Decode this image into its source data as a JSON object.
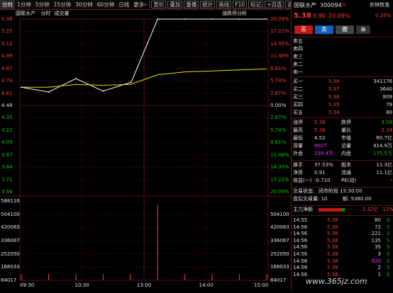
{
  "toolbar": {
    "items": [
      "分时",
      "1分钟",
      "5分钟",
      "15分钟",
      "30分钟",
      "60分钟",
      "日线",
      "更多"
    ],
    "more_arrow": "›",
    "tools": [
      "竞价",
      "叠加",
      "重播",
      "统计",
      "画线",
      "F10",
      "标记"
    ],
    "plus_watch": "+自选",
    "back": "返回"
  },
  "chart": {
    "legend": {
      "name": "国联水产",
      "tab1": "分时",
      "tab2": "成交量"
    },
    "limit_analysis": "涨跌停分析",
    "price_labels": [
      "5.38",
      "5.25",
      "5.12",
      "4.99",
      "4.87",
      "4.74",
      "4.61",
      "4.48",
      "4.35",
      "4.22",
      "4.09",
      "3.97",
      "3.84",
      "3.71",
      "3.58"
    ],
    "pct_labels": [
      "20.09%",
      "17.22%",
      "14.35%",
      "11.48%",
      "8.61%",
      "5.74%",
      "2.87%",
      "0.00%",
      "2.87%",
      "5.74%",
      "8.61%",
      "11.48%",
      "14.35%",
      "17.22%",
      "20.09%"
    ],
    "vol_labels": [
      "588116",
      "504100",
      "420083",
      "336067",
      "252050",
      "168033",
      "84017"
    ],
    "time_labels": [
      "09:30",
      "10:30",
      "13:00",
      "14:00",
      "15:00"
    ],
    "colors": {
      "up": "#ff3b3b",
      "down": "#00c800",
      "price_line": "#ffffff",
      "avg_line": "#e8e000",
      "grid": "#5a1010",
      "volume": "#ff3b3b"
    }
  },
  "chart_data": {
    "type": "line",
    "ylim": [
      3.58,
      5.38
    ],
    "prev_close": 4.48,
    "x": [
      "09:30",
      "10:00",
      "10:30",
      "11:00",
      "11:30",
      "13:00",
      "13:30",
      "14:00",
      "14:30",
      "15:00"
    ],
    "series": [
      {
        "values": [
          4.67,
          4.62,
          4.76,
          4.63,
          4.72,
          5.38,
          5.38,
          5.38,
          5.38,
          5.38
        ]
      },
      {
        "values": [
          4.67,
          4.67,
          4.7,
          4.69,
          4.7,
          4.8,
          4.83,
          4.84,
          4.85,
          4.86
        ]
      }
    ],
    "volume_max": 588116
  },
  "panel": {
    "title_name": "国联水产",
    "code": "300094",
    "r_mark": "R",
    "sector": "农林牧渔",
    "sector_pct": "0.39%",
    "price": "5.38",
    "change": "0.90",
    "change_pct": "20.09%",
    "buy_btn": "买",
    "sell_btn": "卖",
    "cancel_btn": "撤",
    "icon_label": "⊞",
    "asks": [
      {
        "label": "卖五",
        "price": "",
        "vol": ""
      },
      {
        "label": "卖四",
        "price": "",
        "vol": ""
      },
      {
        "label": "卖三",
        "price": "",
        "vol": ""
      },
      {
        "label": "卖二",
        "price": "",
        "vol": ""
      },
      {
        "label": "卖一",
        "price": "",
        "vol": ""
      }
    ],
    "bids": [
      {
        "label": "买一",
        "price": "5.38",
        "vol": "341176"
      },
      {
        "label": "买二",
        "price": "5.37",
        "vol": "3640"
      },
      {
        "label": "买三",
        "price": "5.36",
        "vol": "809"
      },
      {
        "label": "买四",
        "price": "5.35",
        "vol": "79"
      },
      {
        "label": "买五",
        "price": "5.34",
        "vol": "80"
      }
    ],
    "stats": [
      {
        "l1": "涨停",
        "v1": "5.38",
        "l2": "跌停",
        "v2": "3.58"
      },
      {
        "l1": "最高",
        "v1": "5.38",
        "l2": "量比",
        "v2": "2.24"
      },
      {
        "l1": "最低",
        "v1": "4.52",
        "l2": "市值",
        "v2": "60.7亿"
      },
      {
        "l1": "现量",
        "v1": "8027",
        "l2": "总量",
        "v2": "414.9万"
      },
      {
        "l1": "外盘",
        "v1": "239.4万",
        "l2": "内盘",
        "v2": "175.5万"
      }
    ],
    "stats2": [
      {
        "l1": "换手",
        "v1": "37.53%",
        "l2": "股本",
        "v2": "11.3亿"
      },
      {
        "l1": "净资",
        "v1": "0.91",
        "l2": "流通",
        "v2": "11.1亿"
      },
      {
        "l1": "收益(一)",
        "v1": "-0.710",
        "l2": "PE(动)",
        "v2": "-"
      }
    ],
    "trade_status_label": "交易状态:",
    "trade_status": "闭市阶段 15:30:00",
    "after_hours_label": "盘后交易量: 10",
    "after_hours_amount_label": "额: 5380.00",
    "main_flow_label": "主力净额",
    "main_flow_value": "2.32亿",
    "main_flow_pct": "12%",
    "ticks": [
      {
        "t": "14:55",
        "p": "5.38",
        "v": "80",
        "d": "S"
      },
      {
        "t": "14:56",
        "p": "5.38",
        "v": "72",
        "d": "S"
      },
      {
        "t": "14:56",
        "p": "5.38",
        "v": "221",
        "d": "S"
      },
      {
        "t": "14:56",
        "p": "5.38",
        "v": "135",
        "d": "S"
      },
      {
        "t": "14:56",
        "p": "5.38",
        "v": "35",
        "d": "S"
      },
      {
        "t": "14:56",
        "p": "5.38",
        "v": "3",
        "d": "S"
      },
      {
        "t": "14:56",
        "p": "5.38",
        "v": "920",
        "d": "S"
      },
      {
        "t": "14:56",
        "p": "5.38",
        "v": "2",
        "d": "S"
      },
      {
        "t": "14:56",
        "p": "5.38",
        "v": "1",
        "d": "S"
      }
    ],
    "watermark": "www.365jz.com"
  }
}
